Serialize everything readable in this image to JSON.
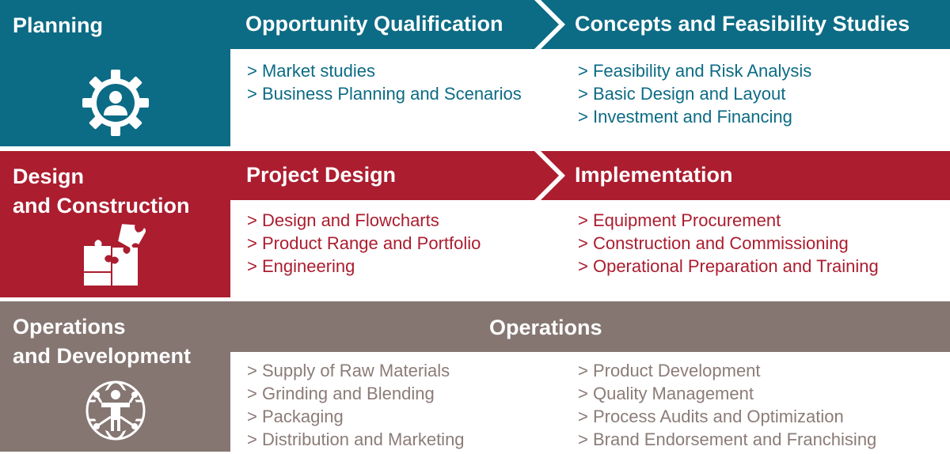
{
  "colors": {
    "planning": "#0c6b85",
    "design": "#ab1d2f",
    "operations": "#857672"
  },
  "rows": [
    {
      "phase": "Planning",
      "icon": "gear-person-icon",
      "stages": [
        {
          "title": "Opportunity Qualification",
          "items": [
            "Market studies",
            "Business Planning and Scenarios"
          ]
        },
        {
          "title": "Concepts and Feasibility Studies",
          "items": [
            "Feasibility and Risk Analysis",
            "Basic Design and Layout",
            "Investment and Financing"
          ]
        }
      ]
    },
    {
      "phase": "Design\nand Construction",
      "icon": "puzzle-icon",
      "stages": [
        {
          "title": "Project Design",
          "items": [
            "Design and Flowcharts",
            "Product Range and Portfolio",
            "Engineering"
          ]
        },
        {
          "title": "Implementation",
          "items": [
            "Equipment Procurement",
            "Construction and Commissioning",
            "Operational Preparation and Training"
          ]
        }
      ]
    },
    {
      "phase": "Operations\nand Development",
      "icon": "globe-person-icon",
      "stages": [
        {
          "title": "Operations",
          "items": [
            "Supply of Raw Materials",
            "Grinding and Blending",
            "Packaging",
            "Distribution and Marketing"
          ]
        },
        {
          "title": "",
          "items": [
            "Product Development",
            "Quality Management",
            "Process Audits and Optimization",
            "Brand Endorsement and Franchising"
          ]
        }
      ]
    }
  ]
}
